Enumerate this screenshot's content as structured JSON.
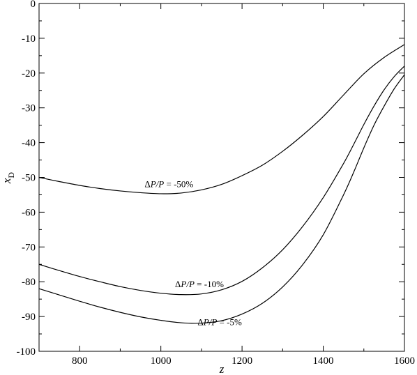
{
  "chart_data": {
    "type": "line",
    "title": "",
    "xlabel": "z",
    "ylabel": {
      "main": "x",
      "sub": "D"
    },
    "xlim": [
      700,
      1600
    ],
    "ylim": [
      -100,
      0
    ],
    "x_ticks": [
      800,
      1000,
      1200,
      1400,
      1600
    ],
    "y_ticks": [
      0,
      -10,
      -20,
      -30,
      -40,
      -50,
      -60,
      -70,
      -80,
      -90,
      -100
    ],
    "x_tick_labels": [
      "800",
      "1000",
      "1200",
      "1400",
      "1600"
    ],
    "y_tick_labels": [
      "0",
      "-10",
      "-20",
      "-30",
      "-40",
      "-50",
      "-60",
      "-70",
      "-80",
      "-90",
      "-100"
    ],
    "grid": false,
    "series": [
      {
        "label": {
          "delta": "Δ",
          "p1": "P",
          "slash": "/",
          "p2": "P",
          "value": " = -50%"
        },
        "label_at": [
          1020,
          -52.8
        ],
        "x": [
          700,
          750,
          800,
          850,
          900,
          950,
          1000,
          1050,
          1100,
          1150,
          1200,
          1250,
          1300,
          1350,
          1400,
          1450,
          1500,
          1550,
          1600
        ],
        "y": [
          -50,
          -51.2,
          -52.3,
          -53.2,
          -53.9,
          -54.4,
          -54.7,
          -54.5,
          -53.6,
          -52.0,
          -49.5,
          -46.5,
          -42.5,
          -37.8,
          -32.5,
          -26.3,
          -20.2,
          -15.5,
          -11.8
        ]
      },
      {
        "label": {
          "delta": "Δ",
          "p1": "P",
          "slash": "/",
          "p2": "P",
          "value": " = -10%"
        },
        "label_at": [
          1095,
          -81.6
        ],
        "x": [
          700,
          750,
          800,
          850,
          900,
          950,
          1000,
          1050,
          1100,
          1150,
          1200,
          1250,
          1300,
          1350,
          1400,
          1450,
          1475,
          1500,
          1525,
          1550,
          1575,
          1600
        ],
        "y": [
          -75,
          -76.8,
          -78.5,
          -80.0,
          -81.4,
          -82.5,
          -83.3,
          -83.7,
          -83.5,
          -82.3,
          -79.9,
          -76.0,
          -70.8,
          -64.0,
          -55.8,
          -46.0,
          -40.5,
          -34.8,
          -29.5,
          -24.8,
          -21.0,
          -18.0
        ]
      },
      {
        "label": {
          "delta": "Δ",
          "p1": "P",
          "slash": "/",
          "p2": "P",
          "value": " = -5%"
        },
        "label_at": [
          1145,
          -92.5
        ],
        "x": [
          700,
          750,
          800,
          850,
          900,
          950,
          1000,
          1050,
          1100,
          1150,
          1200,
          1250,
          1300,
          1350,
          1400,
          1450,
          1475,
          1500,
          1525,
          1550,
          1575,
          1600
        ],
        "y": [
          -82,
          -83.8,
          -85.6,
          -87.3,
          -88.8,
          -90.1,
          -91.1,
          -91.8,
          -91.9,
          -91.2,
          -89.3,
          -86.2,
          -81.5,
          -75.0,
          -66.5,
          -55.0,
          -48.5,
          -41.5,
          -35.0,
          -29.5,
          -24.5,
          -20.5
        ]
      }
    ]
  }
}
